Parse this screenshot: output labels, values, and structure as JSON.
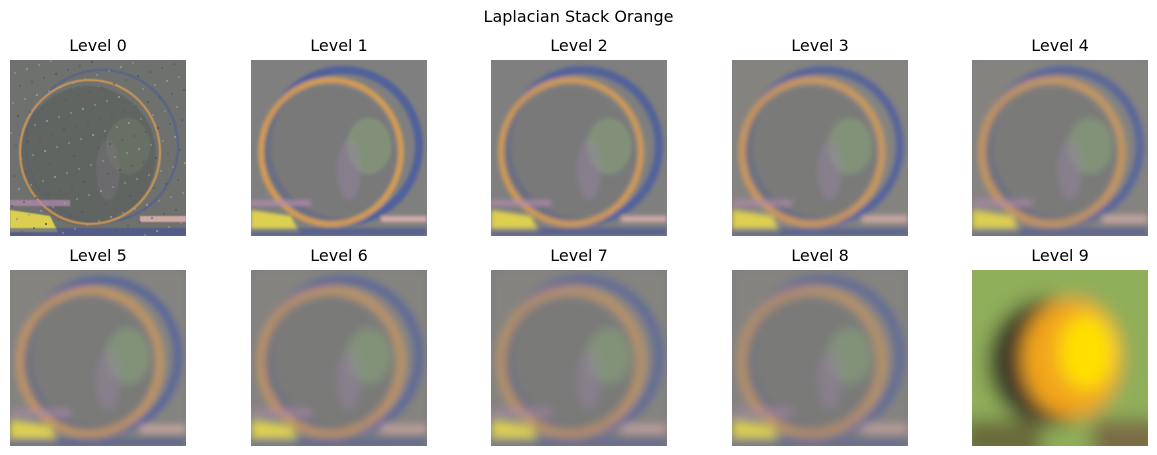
{
  "figure": {
    "title": "Laplacian Stack Orange"
  },
  "panels": [
    {
      "title": "Level 0",
      "kind": "detail"
    },
    {
      "title": "Level 1",
      "kind": "detail"
    },
    {
      "title": "Level 2",
      "kind": "detail"
    },
    {
      "title": "Level 3",
      "kind": "detail"
    },
    {
      "title": "Level 4",
      "kind": "detail"
    },
    {
      "title": "Level 5",
      "kind": "detail"
    },
    {
      "title": "Level 6",
      "kind": "detail"
    },
    {
      "title": "Level 7",
      "kind": "detail"
    },
    {
      "title": "Level 8",
      "kind": "detail"
    },
    {
      "title": "Level 9",
      "kind": "residual"
    }
  ],
  "colors": {
    "gray_base": "#7f7f7f",
    "rim_orange": "#e0a050",
    "rim_blue": "#3b54a8",
    "residual_green": "#8fae5a",
    "residual_orange": "#f2a51a",
    "residual_yellow": "#ffe000",
    "residual_dark": "#3e3a2a"
  }
}
